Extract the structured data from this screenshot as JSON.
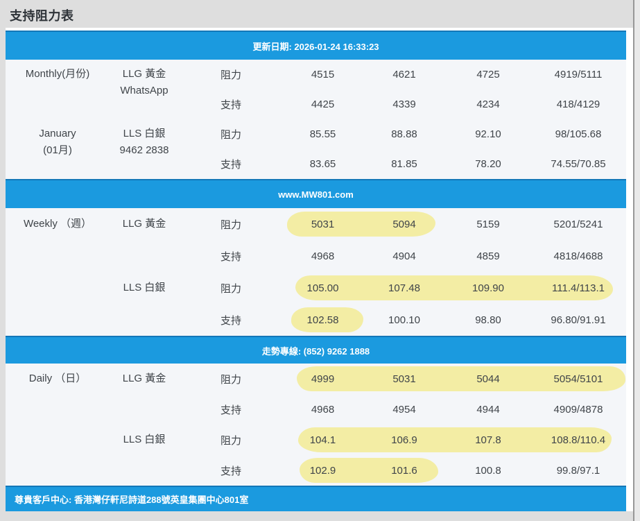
{
  "title": "支持阻力表",
  "bars": {
    "update": "更新日期: 2026-01-24 16:33:23",
    "website": "www.MW801.com",
    "hotline": "走勢專線: (852) 9262 1888",
    "footer": "尊貴客戶中心: 香港灣仔軒尼詩道288號英皇集團中心801室"
  },
  "colors": {
    "bar_blue": "#1b9adf",
    "bar_blue_edge": "#1377b8",
    "highlight_yellow": "#f3eda4",
    "table_bg": "#f4f6f9",
    "page_bg": "#dedede",
    "text": "#3f4449"
  },
  "sections": [
    {
      "id": "monthly",
      "groups": [
        {
          "period": [
            "Monthly(月份)"
          ],
          "instrument": [
            "LLG 黃金",
            "WhatsApp"
          ],
          "rows": [
            {
              "label": "阻力",
              "values": [
                "4515",
                "4621",
                "4725",
                "4919/5111"
              ],
              "highlight": "none"
            },
            {
              "label": "支持",
              "values": [
                "4425",
                "4339",
                "4234",
                "418/4129"
              ],
              "highlight": "none"
            }
          ]
        },
        {
          "period": [
            "January",
            "(01月)"
          ],
          "instrument": [
            "LLS 白銀",
            "9462 2838"
          ],
          "rows": [
            {
              "label": "阻力",
              "values": [
                "85.55",
                "88.88",
                "92.10",
                "98/105.68"
              ],
              "highlight": "none"
            },
            {
              "label": "支持",
              "values": [
                "83.65",
                "81.85",
                "78.20",
                "74.55/70.85"
              ],
              "highlight": "none"
            }
          ]
        }
      ]
    },
    {
      "id": "weekly",
      "groups": [
        {
          "period": [
            "Weekly （週）"
          ],
          "instrument": [
            "LLG 黃金"
          ],
          "rows": [
            {
              "label": "阻力",
              "values": [
                "5031",
                "5094",
                "5159",
                "5201/5241"
              ],
              "highlight": "values 1-2"
            },
            {
              "label": "支持",
              "values": [
                "4968",
                "4904",
                "4859",
                "4818/4688"
              ],
              "highlight": "none"
            }
          ]
        },
        {
          "period": [],
          "instrument": [
            "LLS 白銀"
          ],
          "rows": [
            {
              "label": "阻力",
              "values": [
                "105.00",
                "107.48",
                "109.90",
                "111.4/113.1"
              ],
              "highlight": "values 1-4"
            },
            {
              "label": "支持",
              "values": [
                "102.58",
                "100.10",
                "98.80",
                "96.80/91.91"
              ],
              "highlight": "value 1"
            }
          ]
        }
      ]
    },
    {
      "id": "daily",
      "groups": [
        {
          "period": [
            "Daily （日）"
          ],
          "instrument": [
            "LLG 黃金"
          ],
          "rows": [
            {
              "label": "阻力",
              "values": [
                "4999",
                "5031",
                "5044",
                "5054/5101"
              ],
              "highlight": "values 1-4"
            },
            {
              "label": "支持",
              "values": [
                "4968",
                "4954",
                "4944",
                "4909/4878"
              ],
              "highlight": "none"
            }
          ]
        },
        {
          "period": [],
          "instrument": [
            "LLS 白銀"
          ],
          "rows": [
            {
              "label": "阻力",
              "values": [
                "104.1",
                "106.9",
                "107.8",
                "108.8/110.4"
              ],
              "highlight": "values 1-4"
            },
            {
              "label": "支持",
              "values": [
                "102.9",
                "101.6",
                "100.8",
                "99.8/97.1"
              ],
              "highlight": "values 1-2"
            }
          ]
        }
      ]
    }
  ]
}
